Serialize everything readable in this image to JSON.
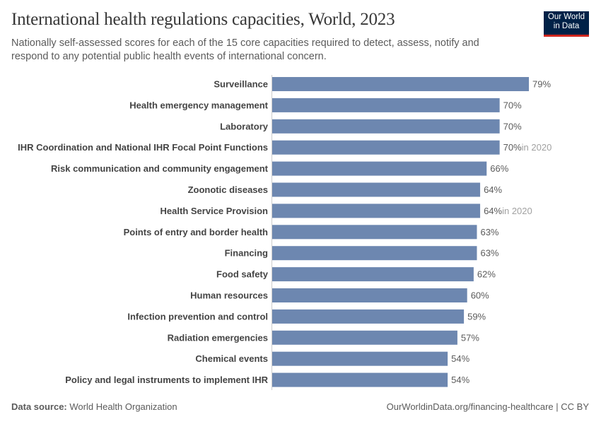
{
  "title": "International health regulations capacities, World, 2023",
  "subtitle": "Nationally self-assessed scores for each of the 15 core capacities required to detect, assess, notify and respond to any potential public health events of international concern.",
  "logo": {
    "line1": "Our World",
    "line2": "in Data",
    "bg": "#002147",
    "accent": "#ce261e"
  },
  "footer": {
    "source_label": "Data source:",
    "source": "World Health Organization",
    "link": "OurWorldinData.org/financing-healthcare | CC BY"
  },
  "chart_data": {
    "type": "bar",
    "orientation": "horizontal",
    "bar_color": "#6d87b0",
    "categories": [
      "Surveillance",
      "Health emergency management",
      "Laboratory",
      "IHR Coordination and National IHR Focal Point Functions",
      "Risk communication and community engagement",
      "Zoonotic diseases",
      "Health Service Provision",
      "Points of entry and border health",
      "Financing",
      "Food safety",
      "Human resources",
      "Infection prevention and control",
      "Radiation emergencies",
      "Chemical events",
      "Policy and legal instruments to implement IHR"
    ],
    "values": [
      79,
      70,
      70,
      70,
      66,
      64,
      64,
      63,
      63,
      62,
      60,
      59,
      57,
      54,
      54
    ],
    "value_labels": [
      "79%",
      "70%",
      "70%",
      "70%",
      "66%",
      "64%",
      "64%",
      "63%",
      "63%",
      "62%",
      "60%",
      "59%",
      "57%",
      "54%",
      "54%"
    ],
    "annotations": [
      "",
      "",
      "",
      "in 2020",
      "",
      "",
      "in 2020",
      "",
      "",
      "",
      "",
      "",
      "",
      "",
      ""
    ],
    "unit": "%"
  }
}
